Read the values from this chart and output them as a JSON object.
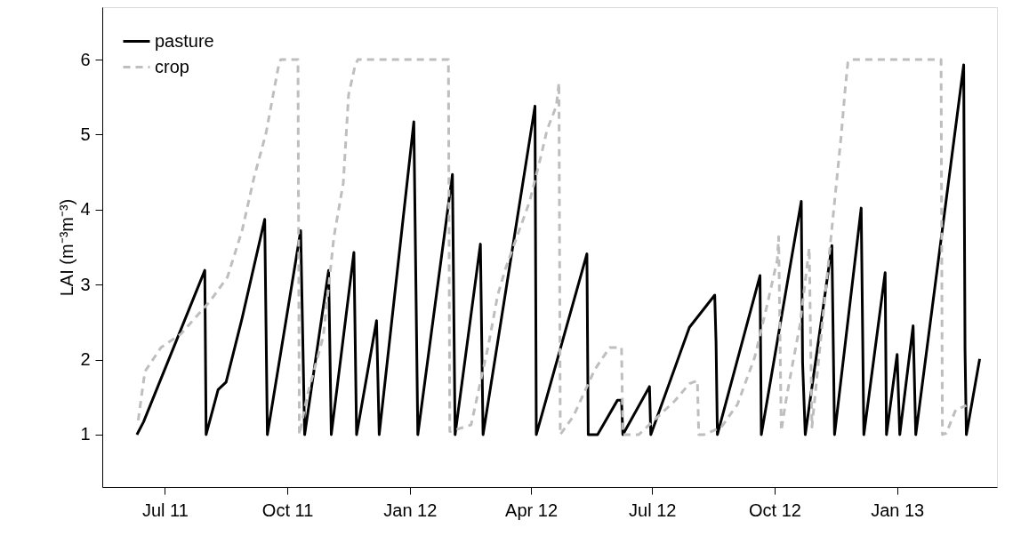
{
  "chart_data": {
    "type": "line",
    "ylabel": "LAI (m⁻³m⁻³)",
    "legend": "top left",
    "grid": false,
    "xlim": [
      "2011-05-15",
      "2013-03-17"
    ],
    "ylim": [
      0.3,
      6.7
    ],
    "yticks": [
      1,
      2,
      3,
      4,
      5,
      6
    ],
    "xticks": [
      {
        "value": "2011-07-01",
        "label": "Jul 11"
      },
      {
        "value": "2011-10-01",
        "label": "Oct 11"
      },
      {
        "value": "2012-01-01",
        "label": "Jan 12"
      },
      {
        "value": "2012-04-01",
        "label": "Apr 12"
      },
      {
        "value": "2012-07-01",
        "label": "Jul 12"
      },
      {
        "value": "2012-10-01",
        "label": "Oct 12"
      },
      {
        "value": "2013-01-01",
        "label": "Jan 13"
      }
    ],
    "series": [
      {
        "name": "pasture",
        "color": "#000000",
        "line_style": "solid",
        "x": [
          "2011-06-10",
          "2011-06-15",
          "2011-07-31",
          "2011-08-01",
          "2011-08-10",
          "2011-08-16",
          "2011-08-28",
          "2011-09-14",
          "2011-09-16",
          "2011-10-11",
          "2011-10-14",
          "2011-11-01",
          "2011-11-03",
          "2011-11-20",
          "2011-11-22",
          "2011-12-07",
          "2011-12-09",
          "2012-01-04",
          "2012-01-07",
          "2012-02-02",
          "2012-02-04",
          "2012-02-23",
          "2012-02-25",
          "2012-04-04",
          "2012-04-05",
          "2012-05-13",
          "2012-05-14",
          "2012-05-21",
          "2012-06-05",
          "2012-06-08",
          "2012-06-09",
          "2012-06-29",
          "2012-06-30",
          "2012-07-29",
          "2012-08-17",
          "2012-08-18",
          "2012-08-19",
          "2012-09-20",
          "2012-09-21",
          "2012-10-21",
          "2012-10-22",
          "2012-10-24",
          "2012-11-13",
          "2012-11-15",
          "2012-12-05",
          "2012-12-07",
          "2012-12-23",
          "2012-12-24",
          "2013-01-01",
          "2013-01-03",
          "2013-01-13",
          "2013-01-15",
          "2013-02-20",
          "2013-02-21",
          "2013-02-22",
          "2013-03-04"
        ],
        "values": [
          1.0,
          1.17,
          3.19,
          1.0,
          1.6,
          1.7,
          2.55,
          3.87,
          1.0,
          3.72,
          1.0,
          3.19,
          1.0,
          3.43,
          1.0,
          2.52,
          1.0,
          5.17,
          1.0,
          4.47,
          1.0,
          3.54,
          1.0,
          5.38,
          1.0,
          3.41,
          1.0,
          1.0,
          1.46,
          1.46,
          1.0,
          1.64,
          1.0,
          2.43,
          2.86,
          2.23,
          1.0,
          3.12,
          1.0,
          4.11,
          1.96,
          1.0,
          3.52,
          1.0,
          4.02,
          1.0,
          3.16,
          1.0,
          2.07,
          1.0,
          2.45,
          1.0,
          5.93,
          2.13,
          1.0,
          2.01
        ]
      },
      {
        "name": "crop",
        "color": "#bebebe",
        "line_style": "dashed",
        "x": [
          "2011-06-11",
          "2011-06-16",
          "2011-06-28",
          "2011-07-13",
          "2011-08-04",
          "2011-08-17",
          "2011-08-28",
          "2011-09-06",
          "2011-09-15",
          "2011-09-24",
          "2011-09-26",
          "2011-10-09",
          "2011-10-10",
          "2011-10-16",
          "2011-10-28",
          "2011-11-05",
          "2011-11-12",
          "2011-11-16",
          "2011-11-21",
          "2011-11-23",
          "2012-01-30",
          "2012-01-31",
          "2012-02-16",
          "2012-02-29",
          "2012-03-07",
          "2012-03-13",
          "2012-03-31",
          "2012-04-09",
          "2012-04-13",
          "2012-04-20",
          "2012-04-22",
          "2012-04-23",
          "2012-05-03",
          "2012-05-12",
          "2012-05-19",
          "2012-05-30",
          "2012-06-08",
          "2012-06-09",
          "2012-06-21",
          "2012-07-18",
          "2012-07-29",
          "2012-08-04",
          "2012-08-05",
          "2012-08-09",
          "2012-08-22",
          "2012-09-03",
          "2012-09-16",
          "2012-09-25",
          "2012-10-03",
          "2012-10-04",
          "2012-10-06",
          "2012-10-09",
          "2012-10-13",
          "2012-10-20",
          "2012-10-27",
          "2012-10-29",
          "2012-11-16",
          "2012-11-20",
          "2012-11-23",
          "2012-11-25",
          "2012-11-27",
          "2013-02-03",
          "2013-02-04",
          "2013-02-07",
          "2013-02-14",
          "2013-02-22"
        ],
        "values": [
          1.19,
          1.84,
          2.16,
          2.34,
          2.78,
          3.1,
          3.72,
          4.43,
          5.02,
          5.88,
          6.0,
          6.0,
          1.0,
          1.52,
          2.31,
          3.64,
          4.35,
          5.53,
          5.93,
          6.0,
          6.0,
          1.04,
          1.13,
          2.19,
          2.86,
          3.22,
          4.11,
          4.75,
          5.06,
          5.38,
          5.69,
          1.0,
          1.25,
          1.6,
          1.87,
          2.16,
          2.16,
          1.0,
          1.0,
          1.45,
          1.68,
          1.72,
          1.0,
          1.0,
          1.1,
          1.4,
          2.03,
          2.7,
          3.33,
          3.64,
          1.05,
          1.4,
          1.8,
          2.46,
          3.49,
          1.1,
          4.28,
          4.99,
          5.61,
          5.96,
          6.0,
          6.0,
          1.0,
          1.02,
          1.33,
          1.39
        ]
      }
    ]
  }
}
